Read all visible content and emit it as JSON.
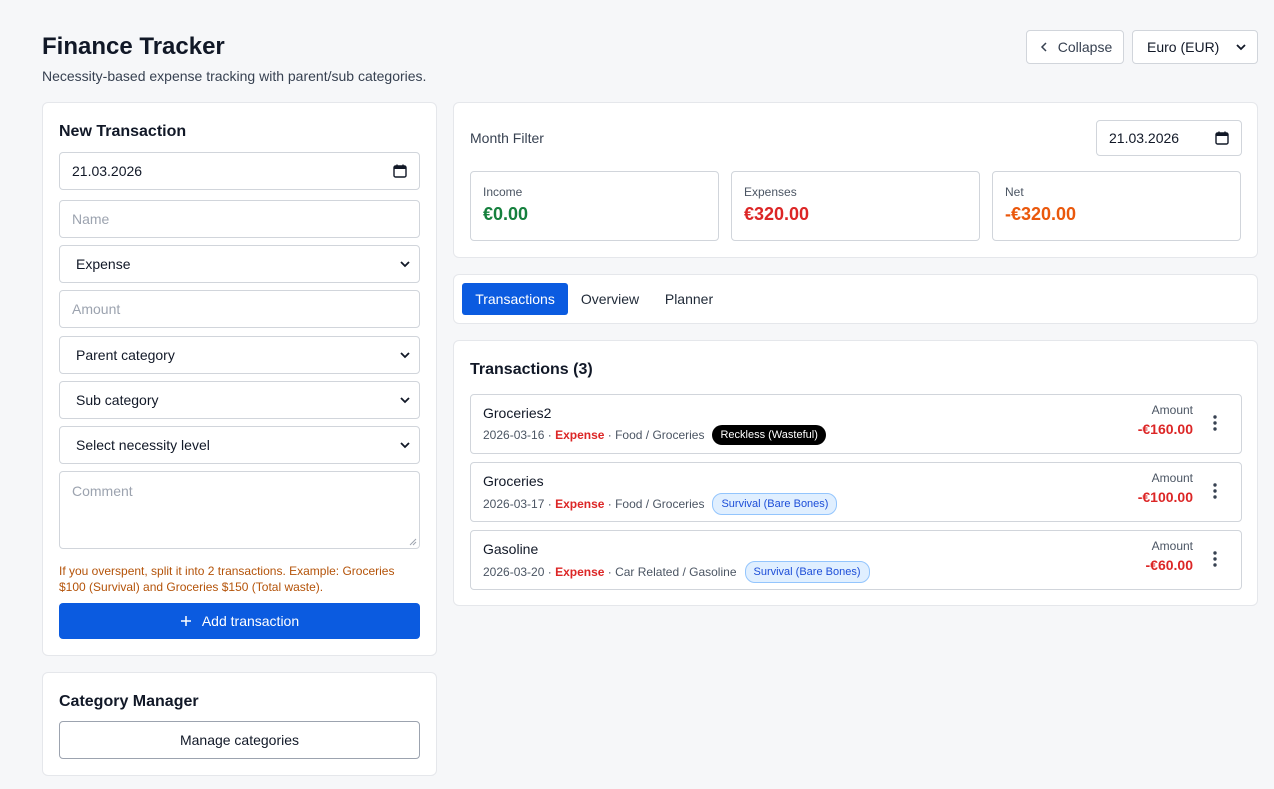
{
  "header": {
    "title": "Finance Tracker",
    "subtitle": "Necessity-based expense tracking with parent/sub categories.",
    "collapse_label": "Collapse",
    "currency": "Euro (EUR)"
  },
  "new_transaction": {
    "heading": "New Transaction",
    "date_value": "21.03.2026",
    "name_placeholder": "Name",
    "type_value": "Expense",
    "amount_placeholder": "Amount",
    "parent_category_value": "Parent category",
    "sub_category_value": "Sub category",
    "necessity_value": "Select necessity level",
    "comment_placeholder": "Comment",
    "hint": "If you overspent, split it into 2 transactions. Example: Groceries $100 (Survival) and Groceries $150 (Total waste).",
    "add_label": "Add transaction"
  },
  "category_manager": {
    "heading": "Category Manager",
    "manage_label": "Manage categories"
  },
  "month_filter": {
    "label": "Month Filter",
    "date_value": "21.03.2026",
    "income_label": "Income",
    "income_value": "€0.00",
    "expenses_label": "Expenses",
    "expenses_value": "€320.00",
    "net_label": "Net",
    "net_value": "-€320.00"
  },
  "tabs": [
    "Transactions",
    "Overview",
    "Planner"
  ],
  "transactions": {
    "heading": "Transactions (3)",
    "amount_label": "Amount",
    "items": [
      {
        "name": "Groceries2",
        "date": "2026-03-16",
        "type": "Expense",
        "category": "Food / Groceries",
        "necessity": "Reckless (Wasteful)",
        "amount": "-€160.00"
      },
      {
        "name": "Groceries",
        "date": "2026-03-17",
        "type": "Expense",
        "category": "Food / Groceries",
        "necessity": "Survival (Bare Bones)",
        "amount": "-€100.00"
      },
      {
        "name": "Gasoline",
        "date": "2026-03-20",
        "type": "Expense",
        "category": "Car Related / Gasoline",
        "necessity": "Survival (Bare Bones)",
        "amount": "-€60.00"
      }
    ]
  },
  "colors": {
    "primary": "#0b5be0",
    "income": "#15803d",
    "expense": "#dc2626",
    "net": "#ea580c",
    "hint": "#b45309"
  },
  "icons": {
    "collapse": "chevron-left-icon",
    "calendar": "calendar-icon",
    "dropdown": "chevron-down-icon",
    "add": "plus-icon",
    "more": "kebab-menu-icon"
  }
}
